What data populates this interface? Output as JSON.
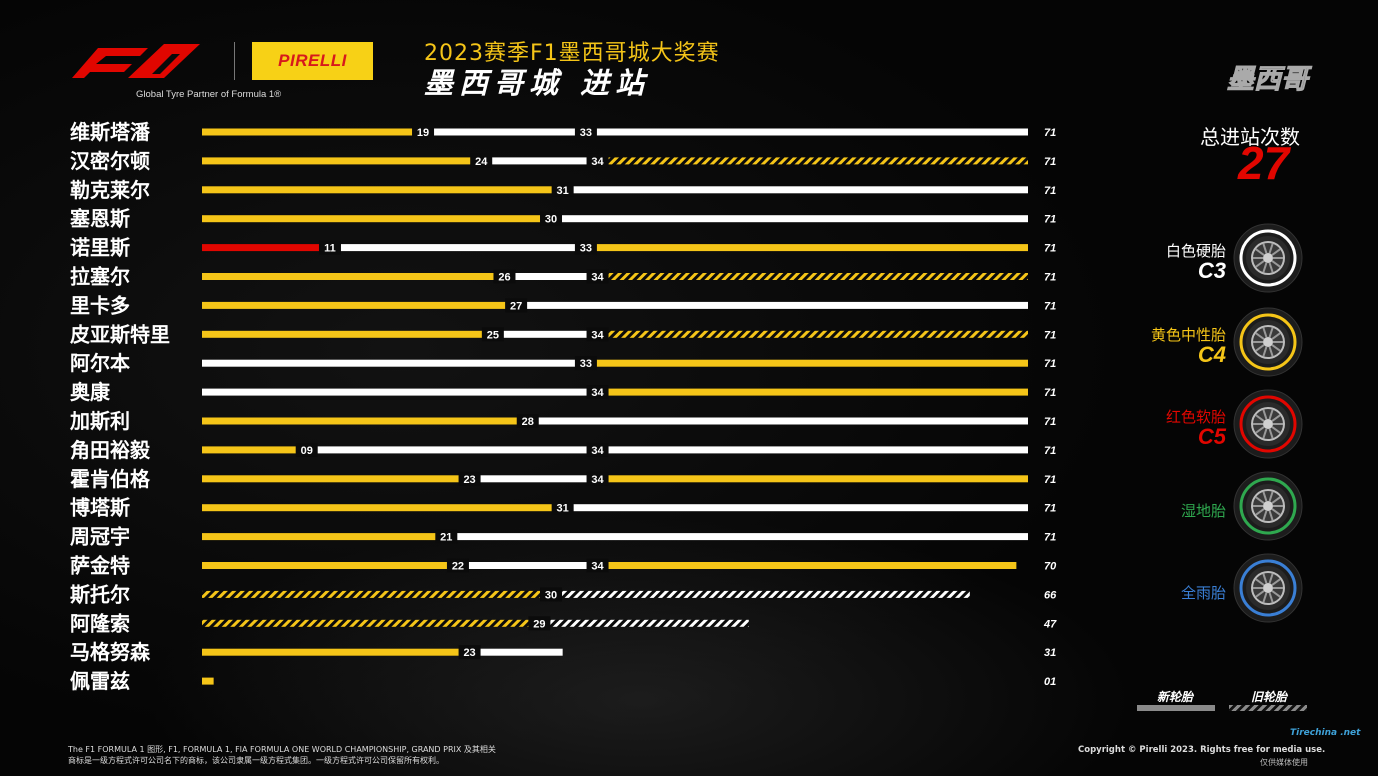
{
  "header": {
    "title": "2023赛季F1墨西哥城大奖赛",
    "subtitle": "墨西哥城  进站",
    "partner": "Global Tyre Partner of Formula 1®",
    "brand": "PIRELLI",
    "corner_city": "墨西哥"
  },
  "colors": {
    "medium": "#f5c518",
    "hard": "#ffffff",
    "soft": "#e10600",
    "wet": "#2fa84f",
    "intermediate": "#3a7fd5",
    "accent_red": "#e10600"
  },
  "stops": {
    "label": "总进站次数",
    "value": "27"
  },
  "tyres": [
    {
      "label": "白色硬胎",
      "code": "C3",
      "color": "#ffffff"
    },
    {
      "label": "黄色中性胎",
      "code": "C4",
      "color": "#f5c518"
    },
    {
      "label": "红色软胎",
      "code": "C5",
      "color": "#e10600"
    },
    {
      "label": "湿地胎",
      "code": "",
      "color": "#2fa84f"
    },
    {
      "label": "全雨胎",
      "code": "",
      "color": "#3a7fd5"
    }
  ],
  "legend": {
    "new": "新轮胎",
    "used": "旧轮胎"
  },
  "footer": {
    "left_line1": "The F1 FORMULA 1 图形, F1, FORMULA 1, FIA FORMULA ONE WORLD CHAMPIONSHIP, GRAND PRIX 及其相关",
    "left_line2": "商标是一级方程式许可公司名下的商标，该公司隶属一级方程式集团。一级方程式许可公司保留所有权利。",
    "right": "Copyright © Pirelli 2023. Rights free for media use.",
    "right2": "仅供媒体使用",
    "watermark": "Tirechina .net"
  },
  "chart_data": {
    "type": "bar",
    "title": "2023赛季F1墨西哥城大奖赛",
    "xlabel": "",
    "ylabel": "",
    "xlim": [
      0,
      71
    ],
    "total_laps": 71,
    "drivers": [
      {
        "name": "维斯塔潘",
        "stints": [
          {
            "compound": "medium",
            "start": 0,
            "end": 19,
            "used": false,
            "label": "19"
          },
          {
            "compound": "hard",
            "start": 19,
            "end": 33,
            "used": false,
            "label": "33"
          },
          {
            "compound": "hard",
            "start": 33,
            "end": 71,
            "used": false,
            "label": ""
          }
        ],
        "finish": "71"
      },
      {
        "name": "汉密尔顿",
        "stints": [
          {
            "compound": "medium",
            "start": 0,
            "end": 24,
            "used": false,
            "label": "24"
          },
          {
            "compound": "hard",
            "start": 24,
            "end": 34,
            "used": false,
            "label": "34"
          },
          {
            "compound": "medium",
            "start": 34,
            "end": 71,
            "used": true,
            "label": ""
          }
        ],
        "finish": "71"
      },
      {
        "name": "勒克莱尔",
        "stints": [
          {
            "compound": "medium",
            "start": 0,
            "end": 31,
            "used": false,
            "label": "31"
          },
          {
            "compound": "hard",
            "start": 31,
            "end": 71,
            "used": false,
            "label": ""
          }
        ],
        "finish": "71"
      },
      {
        "name": "塞恩斯",
        "stints": [
          {
            "compound": "medium",
            "start": 0,
            "end": 30,
            "used": false,
            "label": "30"
          },
          {
            "compound": "hard",
            "start": 30,
            "end": 71,
            "used": false,
            "label": ""
          }
        ],
        "finish": "71"
      },
      {
        "name": "诺里斯",
        "stints": [
          {
            "compound": "soft",
            "start": 0,
            "end": 11,
            "used": false,
            "label": "11"
          },
          {
            "compound": "hard",
            "start": 11,
            "end": 33,
            "used": false,
            "label": "33"
          },
          {
            "compound": "medium",
            "start": 33,
            "end": 71,
            "used": false,
            "label": ""
          }
        ],
        "finish": "71"
      },
      {
        "name": "拉塞尔",
        "stints": [
          {
            "compound": "medium",
            "start": 0,
            "end": 26,
            "used": false,
            "label": "26"
          },
          {
            "compound": "hard",
            "start": 26,
            "end": 34,
            "used": false,
            "label": "34"
          },
          {
            "compound": "medium",
            "start": 34,
            "end": 71,
            "used": true,
            "label": ""
          }
        ],
        "finish": "71"
      },
      {
        "name": "里卡多",
        "stints": [
          {
            "compound": "medium",
            "start": 0,
            "end": 27,
            "used": false,
            "label": "27"
          },
          {
            "compound": "hard",
            "start": 27,
            "end": 71,
            "used": false,
            "label": ""
          }
        ],
        "finish": "71"
      },
      {
        "name": "皮亚斯特里",
        "stints": [
          {
            "compound": "medium",
            "start": 0,
            "end": 25,
            "used": false,
            "label": "25"
          },
          {
            "compound": "hard",
            "start": 25,
            "end": 34,
            "used": false,
            "label": "34"
          },
          {
            "compound": "medium",
            "start": 34,
            "end": 71,
            "used": true,
            "label": ""
          }
        ],
        "finish": "71"
      },
      {
        "name": "阿尔本",
        "stints": [
          {
            "compound": "hard",
            "start": 0,
            "end": 33,
            "used": false,
            "label": "33"
          },
          {
            "compound": "medium",
            "start": 33,
            "end": 71,
            "used": false,
            "label": ""
          }
        ],
        "finish": "71"
      },
      {
        "name": "奥康",
        "stints": [
          {
            "compound": "hard",
            "start": 0,
            "end": 34,
            "used": false,
            "label": "34"
          },
          {
            "compound": "medium",
            "start": 34,
            "end": 71,
            "used": false,
            "label": ""
          }
        ],
        "finish": "71"
      },
      {
        "name": "加斯利",
        "stints": [
          {
            "compound": "medium",
            "start": 0,
            "end": 28,
            "used": false,
            "label": "28"
          },
          {
            "compound": "hard",
            "start": 28,
            "end": 71,
            "used": false,
            "label": ""
          }
        ],
        "finish": "71"
      },
      {
        "name": "角田裕毅",
        "stints": [
          {
            "compound": "medium",
            "start": 0,
            "end": 9,
            "used": false,
            "label": "09"
          },
          {
            "compound": "hard",
            "start": 9,
            "end": 34,
            "used": false,
            "label": "34"
          },
          {
            "compound": "hard",
            "start": 34,
            "end": 71,
            "used": false,
            "label": ""
          }
        ],
        "finish": "71"
      },
      {
        "name": "霍肯伯格",
        "stints": [
          {
            "compound": "medium",
            "start": 0,
            "end": 23,
            "used": false,
            "label": "23"
          },
          {
            "compound": "hard",
            "start": 23,
            "end": 34,
            "used": false,
            "label": "34"
          },
          {
            "compound": "medium",
            "start": 34,
            "end": 71,
            "used": false,
            "label": ""
          }
        ],
        "finish": "71"
      },
      {
        "name": "博塔斯",
        "stints": [
          {
            "compound": "medium",
            "start": 0,
            "end": 31,
            "used": false,
            "label": "31"
          },
          {
            "compound": "hard",
            "start": 31,
            "end": 71,
            "used": false,
            "label": ""
          }
        ],
        "finish": "71"
      },
      {
        "name": "周冠宇",
        "stints": [
          {
            "compound": "medium",
            "start": 0,
            "end": 21,
            "used": false,
            "label": "21"
          },
          {
            "compound": "hard",
            "start": 21,
            "end": 71,
            "used": false,
            "label": ""
          }
        ],
        "finish": "71"
      },
      {
        "name": "萨金特",
        "stints": [
          {
            "compound": "medium",
            "start": 0,
            "end": 22,
            "used": false,
            "label": "22"
          },
          {
            "compound": "hard",
            "start": 22,
            "end": 34,
            "used": false,
            "label": "34"
          },
          {
            "compound": "medium",
            "start": 34,
            "end": 70,
            "used": false,
            "label": ""
          }
        ],
        "finish": "70"
      },
      {
        "name": "斯托尔",
        "stints": [
          {
            "compound": "medium",
            "start": 0,
            "end": 30,
            "used": true,
            "label": "30"
          },
          {
            "compound": "hard",
            "start": 30,
            "end": 66,
            "used": true,
            "label": ""
          }
        ],
        "finish": "66"
      },
      {
        "name": "阿隆索",
        "stints": [
          {
            "compound": "medium",
            "start": 0,
            "end": 29,
            "used": true,
            "label": "29"
          },
          {
            "compound": "hard",
            "start": 29,
            "end": 47,
            "used": true,
            "label": ""
          }
        ],
        "finish": "47"
      },
      {
        "name": "马格努森",
        "stints": [
          {
            "compound": "medium",
            "start": 0,
            "end": 23,
            "used": false,
            "label": "23"
          },
          {
            "compound": "hard",
            "start": 23,
            "end": 31,
            "used": false,
            "label": ""
          }
        ],
        "finish": "31"
      },
      {
        "name": "佩雷兹",
        "stints": [
          {
            "compound": "medium",
            "start": 0,
            "end": 1,
            "used": false,
            "label": ""
          }
        ],
        "finish": "01"
      }
    ]
  }
}
